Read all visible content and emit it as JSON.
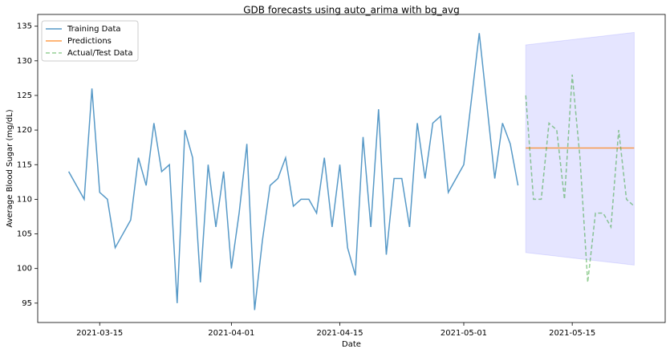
{
  "chart_data": {
    "type": "line",
    "title": "GDB forecasts using auto_arima with bg_avg",
    "xlabel": "Date",
    "ylabel": "Average Blood Sugar (mg/dL)",
    "xlim": [
      "2021-03-07",
      "2021-05-27"
    ],
    "xticks": [
      "2021-03-15",
      "2021-04-01",
      "2021-04-15",
      "2021-05-01",
      "2021-05-15"
    ],
    "ylim": [
      92.2,
      136.7
    ],
    "yticks": [
      95,
      100,
      105,
      110,
      115,
      120,
      125,
      130,
      135
    ],
    "legend": "upper left",
    "series": [
      {
        "name": "Training Data",
        "color": "#1f77b4",
        "dash": false,
        "x": [
          "2021-03-11",
          "2021-03-13",
          "2021-03-14",
          "2021-03-15",
          "2021-03-16",
          "2021-03-17",
          "2021-03-19",
          "2021-03-20",
          "2021-03-21",
          "2021-03-22",
          "2021-03-23",
          "2021-03-24",
          "2021-03-25",
          "2021-03-26",
          "2021-03-27",
          "2021-03-28",
          "2021-03-29",
          "2021-03-30",
          "2021-03-31",
          "2021-04-01",
          "2021-04-02",
          "2021-04-03",
          "2021-04-04",
          "2021-04-05",
          "2021-04-06",
          "2021-04-07",
          "2021-04-08",
          "2021-04-09",
          "2021-04-10",
          "2021-04-11",
          "2021-04-12",
          "2021-04-13",
          "2021-04-14",
          "2021-04-15",
          "2021-04-16",
          "2021-04-17",
          "2021-04-18",
          "2021-04-19",
          "2021-04-20",
          "2021-04-21",
          "2021-04-22",
          "2021-04-23",
          "2021-04-24",
          "2021-04-25",
          "2021-04-26",
          "2021-04-27",
          "2021-04-28",
          "2021-04-29",
          "2021-05-01",
          "2021-05-03",
          "2021-05-05",
          "2021-05-06",
          "2021-05-07",
          "2021-05-08"
        ],
        "values": [
          114,
          110,
          126,
          111,
          110,
          103,
          107,
          116,
          112,
          121,
          114,
          115,
          95,
          120,
          116,
          98,
          115,
          106,
          114,
          100,
          108,
          118,
          94,
          104,
          112,
          113,
          116,
          109,
          110,
          110,
          108,
          116,
          106,
          115,
          103,
          99,
          119,
          106,
          123,
          102,
          113,
          113,
          106,
          121,
          113,
          121,
          122,
          111,
          115,
          134,
          113,
          121,
          118,
          112
        ]
      },
      {
        "name": "Predictions",
        "color": "#ff7f0e",
        "dash": false,
        "x": [
          "2021-05-09",
          "2021-05-23"
        ],
        "values": [
          117.4,
          117.4
        ]
      },
      {
        "name": "Actual/Test Data",
        "color": "#2ca02c",
        "dash": true,
        "x": [
          "2021-05-09",
          "2021-05-10",
          "2021-05-11",
          "2021-05-12",
          "2021-05-13",
          "2021-05-14",
          "2021-05-15",
          "2021-05-16",
          "2021-05-17",
          "2021-05-18",
          "2021-05-19",
          "2021-05-20",
          "2021-05-21",
          "2021-05-22",
          "2021-05-23"
        ],
        "values": [
          125,
          110,
          110,
          121,
          120,
          110,
          128,
          116,
          98,
          108,
          108,
          106,
          120,
          110,
          109
        ]
      }
    ],
    "interval": {
      "color": "#0000ff",
      "x": [
        "2021-05-09",
        "2021-05-23"
      ],
      "lower": [
        102.3,
        100.5
      ],
      "upper": [
        132.3,
        134.1
      ]
    }
  }
}
